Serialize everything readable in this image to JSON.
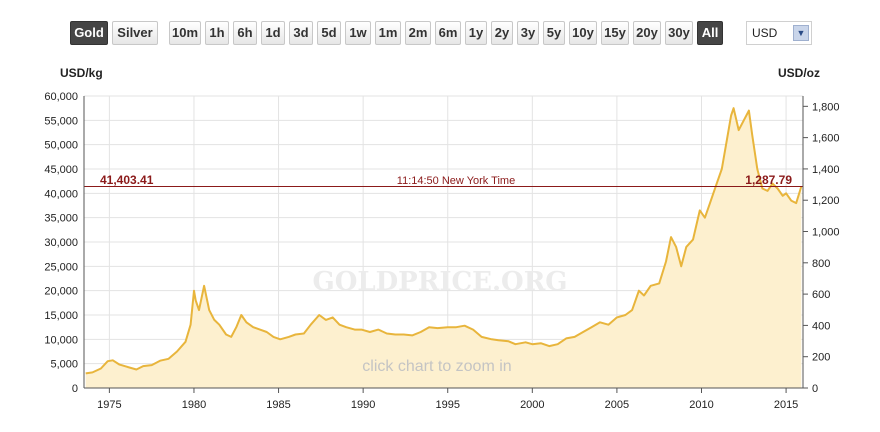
{
  "toolbar": {
    "metal_tabs": [
      {
        "label": "Gold",
        "active": true
      },
      {
        "label": "Silver",
        "active": false
      }
    ],
    "ranges": [
      "10m",
      "1h",
      "6h",
      "1d",
      "3d",
      "5d",
      "1w",
      "1m",
      "2m",
      "6m",
      "1y",
      "2y",
      "3y",
      "5y",
      "10y",
      "15y",
      "20y",
      "30y",
      "All"
    ],
    "active_range": "All",
    "currency": "USD"
  },
  "units": {
    "left": "USD/kg",
    "right": "USD/oz"
  },
  "watermark": "GOLDPRICE.ORG",
  "hint": "click chart to zoom in",
  "price_line": {
    "left_value": "41,403.41",
    "right_value": "1,287.79",
    "time": "11:14:50 New York Time",
    "value_kg": 41403.41
  },
  "colors": {
    "line": "#e8b53c",
    "fill": "#fdf0cf",
    "price_line": "#8b1a1a",
    "active_button": "#454545"
  },
  "chart_data": {
    "type": "area",
    "title": "",
    "xlabel": "",
    "ylabel": "USD/kg",
    "y2label": "USD/oz",
    "xlim": [
      1973.5,
      2016.0
    ],
    "ylim": [
      0,
      60000
    ],
    "y2lim": [
      0,
      1866
    ],
    "x_ticks": [
      1975,
      1980,
      1985,
      1990,
      1995,
      2000,
      2005,
      2010,
      2015
    ],
    "y_ticks": [
      "0",
      "5,000",
      "10,000",
      "15,000",
      "20,000",
      "25,000",
      "30,000",
      "35,000",
      "40,000",
      "45,000",
      "50,000",
      "55,000",
      "60,000"
    ],
    "y2_ticks": [
      "0",
      "200",
      "400",
      "600",
      "800",
      "1,000",
      "1,200",
      "1,400",
      "1,600",
      "1,800"
    ],
    "grid": true,
    "series": [
      {
        "x": [
          1973.6,
          1974.0,
          1974.5,
          1974.9,
          1975.2,
          1975.6,
          1976.0,
          1976.6,
          1977.0,
          1977.5,
          1978.0,
          1978.5,
          1979.0,
          1979.5,
          1979.8,
          1980.0,
          1980.1,
          1980.3,
          1980.6,
          1980.9,
          1981.2,
          1981.5,
          1981.9,
          1982.2,
          1982.5,
          1982.8,
          1983.1,
          1983.5,
          1983.9,
          1984.3,
          1984.7,
          1985.1,
          1985.6,
          1986.0,
          1986.5,
          1986.9,
          1987.4,
          1987.8,
          1988.2,
          1988.6,
          1989.0,
          1989.5,
          1989.9,
          1990.4,
          1990.9,
          1991.4,
          1991.9,
          1992.4,
          1992.9,
          1993.4,
          1993.9,
          1994.4,
          1995.0,
          1995.5,
          1996.0,
          1996.5,
          1997.0,
          1997.6,
          1998.0,
          1998.6,
          1999.0,
          1999.6,
          2000.0,
          2000.5,
          2001.0,
          2001.5,
          2002.0,
          2002.5,
          2003.0,
          2003.5,
          2004.0,
          2004.5,
          2005.0,
          2005.5,
          2005.9,
          2006.3,
          2006.6,
          2007.0,
          2007.5,
          2007.9,
          2008.2,
          2008.5,
          2008.8,
          2009.1,
          2009.5,
          2009.9,
          2010.2,
          2010.5,
          2010.9,
          2011.2,
          2011.5,
          2011.75,
          2011.9,
          2012.2,
          2012.5,
          2012.8,
          2013.0,
          2013.3,
          2013.6,
          2013.9,
          2014.2,
          2014.5,
          2014.8,
          2015.0,
          2015.3,
          2015.6,
          2015.9
        ],
        "y": [
          3000,
          3200,
          4000,
          5500,
          5700,
          4800,
          4400,
          3800,
          4500,
          4700,
          5600,
          6000,
          7500,
          9500,
          13000,
          20000,
          18000,
          16000,
          21000,
          16000,
          14000,
          13000,
          11000,
          10500,
          12500,
          15000,
          13500,
          12500,
          12000,
          11500,
          10500,
          10000,
          10500,
          11000,
          11200,
          13000,
          15000,
          14000,
          14500,
          13000,
          12500,
          12000,
          12000,
          11500,
          12000,
          11200,
          11000,
          11000,
          10800,
          11500,
          12500,
          12300,
          12500,
          12500,
          12800,
          12000,
          10500,
          10000,
          9800,
          9600,
          9000,
          9400,
          9000,
          9200,
          8600,
          9000,
          10200,
          10500,
          11500,
          12500,
          13500,
          13000,
          14500,
          15000,
          16000,
          20000,
          19000,
          21000,
          21500,
          26000,
          31000,
          29000,
          25000,
          29000,
          30500,
          36500,
          35000,
          38000,
          42000,
          45000,
          51000,
          56000,
          57500,
          53000,
          55000,
          57000,
          52000,
          45000,
          41000,
          40500,
          42000,
          41000,
          39500,
          40000,
          38500,
          38000,
          41403
        ]
      }
    ]
  }
}
